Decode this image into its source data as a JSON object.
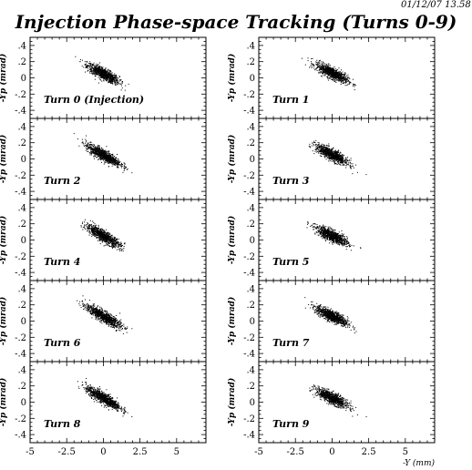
{
  "header": {
    "title": "Injection Phase-space Tracking (Turns 0-9)",
    "timestamp": "01/12/07   13.58"
  },
  "chart_data": {
    "type": "scatter",
    "title": "Injection Phase-space Tracking (Turns 0-9)",
    "xlabel": "-Y (mm)",
    "ylabel": "-Yp (mrad)",
    "xlim": [
      -5,
      7
    ],
    "ylim": [
      -0.5,
      0.5
    ],
    "x_ticks": [
      "-5",
      "-2.5",
      "0",
      "2.5",
      "5"
    ],
    "y_ticks": [
      ".4",
      ".2",
      "0",
      "-.2",
      "-.4"
    ],
    "marker_color": "#000000",
    "description_of_distribution": "tilted elliptical beam cloud",
    "panels": [
      {
        "label": "Turn 0 (Injection)",
        "turn": 0,
        "center": [
          0.0,
          0.05
        ],
        "x_half_width": 1.2,
        "slope": -0.09,
        "spread": 0.035,
        "n_points": 900
      },
      {
        "label": "Turn 1",
        "turn": 1,
        "center": [
          0.0,
          0.06
        ],
        "x_half_width": 1.2,
        "slope": -0.085,
        "spread": 0.035,
        "n_points": 900
      },
      {
        "label": "Turn 2",
        "turn": 2,
        "center": [
          0.0,
          0.05
        ],
        "x_half_width": 1.3,
        "slope": -0.095,
        "spread": 0.035,
        "n_points": 900
      },
      {
        "label": "Turn 3",
        "turn": 3,
        "center": [
          0.0,
          0.05
        ],
        "x_half_width": 1.2,
        "slope": -0.09,
        "spread": 0.035,
        "n_points": 900
      },
      {
        "label": "Turn 4",
        "turn": 4,
        "center": [
          0.0,
          0.05
        ],
        "x_half_width": 1.3,
        "slope": -0.1,
        "spread": 0.035,
        "n_points": 900
      },
      {
        "label": "Turn 5",
        "turn": 5,
        "center": [
          0.0,
          0.05
        ],
        "x_half_width": 1.2,
        "slope": -0.08,
        "spread": 0.035,
        "n_points": 900
      },
      {
        "label": "Turn 6",
        "turn": 6,
        "center": [
          0.0,
          0.06
        ],
        "x_half_width": 1.3,
        "slope": -0.1,
        "spread": 0.035,
        "n_points": 900
      },
      {
        "label": "Turn 7",
        "turn": 7,
        "center": [
          0.0,
          0.06
        ],
        "x_half_width": 1.2,
        "slope": -0.085,
        "spread": 0.035,
        "n_points": 900
      },
      {
        "label": "Turn 8",
        "turn": 8,
        "center": [
          0.0,
          0.05
        ],
        "x_half_width": 1.3,
        "slope": -0.1,
        "spread": 0.035,
        "n_points": 900
      },
      {
        "label": "Turn 9",
        "turn": 9,
        "center": [
          0.0,
          0.05
        ],
        "x_half_width": 1.2,
        "slope": -0.085,
        "spread": 0.035,
        "n_points": 900
      }
    ]
  }
}
